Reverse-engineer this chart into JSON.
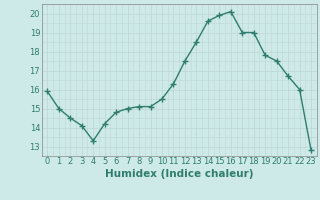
{
  "x": [
    0,
    1,
    2,
    3,
    4,
    5,
    6,
    7,
    8,
    9,
    10,
    11,
    12,
    13,
    14,
    15,
    16,
    17,
    18,
    19,
    20,
    21,
    22,
    23
  ],
  "y": [
    15.9,
    15.0,
    14.5,
    14.1,
    13.3,
    14.2,
    14.8,
    15.0,
    15.1,
    15.1,
    15.5,
    16.3,
    17.5,
    18.5,
    19.6,
    19.9,
    20.1,
    19.0,
    19.0,
    17.8,
    17.5,
    16.7,
    16.0,
    12.8
  ],
  "line_color": "#2e7d6e",
  "bg_color": "#ceeae8",
  "grid_color": "#c0d8d5",
  "xlabel": "Humidex (Indice chaleur)",
  "ylim": [
    12.5,
    20.5
  ],
  "xlim": [
    -0.5,
    23.5
  ],
  "yticks": [
    13,
    14,
    15,
    16,
    17,
    18,
    19,
    20
  ],
  "xtick_labels": [
    "0",
    "1",
    "2",
    "3",
    "4",
    "5",
    "6",
    "7",
    "8",
    "9",
    "10",
    "11",
    "12",
    "13",
    "14",
    "15",
    "16",
    "17",
    "18",
    "19",
    "20",
    "21",
    "22",
    "23"
  ],
  "marker": "+",
  "markersize": 4,
  "linewidth": 1.0,
  "tick_fontsize": 6.0,
  "xlabel_fontsize": 7.5
}
